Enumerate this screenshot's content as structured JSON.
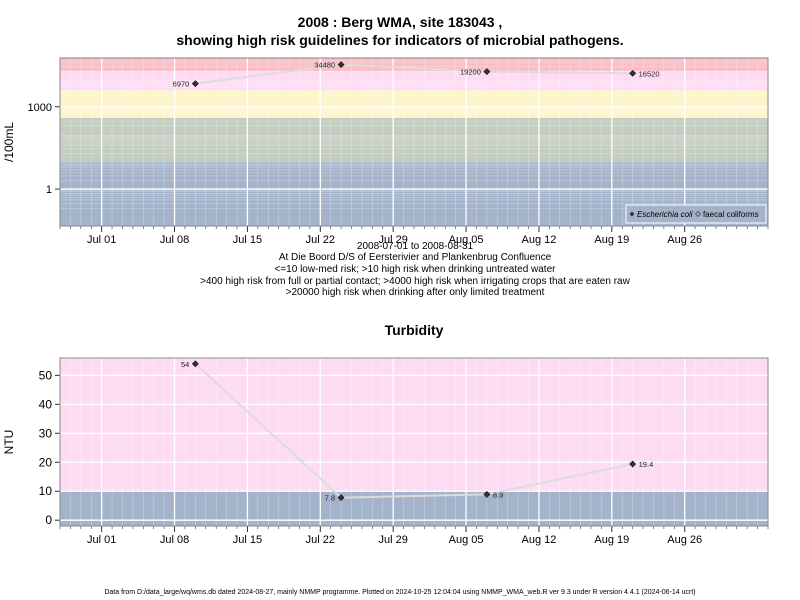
{
  "figure": {
    "title_line1": "2008 : Berg WMA, site 183043 ,",
    "title_line2": "showing high risk guidelines for indicators of microbial pathogens.",
    "footer": "Data from D:/data_large/wq/wms.db dated 2024-08-27, mainly NMMP programme. Plotted on 2024-10-25 12:04:04 using NMMP_WMA_web.R ver 9.3 under R version 4.4.1 (2024-06-14 ucrt)"
  },
  "caption": {
    "date_range": "2008-07-01 to 2008-08-31",
    "site": "At Die Boord D/S of Eersterivier and Plankenbrug Confluence",
    "note1": "<=10 low-med risk; >10 high risk when drinking untreated water",
    "note2": ">400 high risk from full or partial contact; >4000 high risk when irrigating crops that are eaten raw",
    "note3": ">20000 high risk when drinking after only limited treatment"
  },
  "colors": {
    "band_low": "#a3b4ca",
    "band_10": "#c3cec1",
    "band_400": "#fdf5c9",
    "band_4000": "#fddcf3",
    "band_20000": "#fcbdc7",
    "line": "#dcdcdc",
    "point": "#333333",
    "grid": "#ffffff"
  },
  "chart_data": [
    {
      "type": "line",
      "title": "",
      "ylabel": "/100mL",
      "yscale": "log",
      "xlim": [
        "2008-06-27",
        "2008-09-03"
      ],
      "ylim": [
        0.045,
        60000
      ],
      "x_ticks": [
        "2008-07-01",
        "2008-07-08",
        "2008-07-15",
        "2008-07-22",
        "2008-07-29",
        "2008-08-05",
        "2008-08-12",
        "2008-08-19",
        "2008-08-26"
      ],
      "x_tick_labels": [
        "Jul 01",
        "Jul 08",
        "Jul 15",
        "Jul 22",
        "Jul 29",
        "Aug 05",
        "Aug 12",
        "Aug 19",
        "Aug 26"
      ],
      "y_ticks": [
        1,
        1000
      ],
      "y_tick_labels": [
        "1",
        "1000"
      ],
      "bands": [
        {
          "from": 0.045,
          "to": 10,
          "color": "#a3b4ca"
        },
        {
          "from": 10,
          "to": 400,
          "color": "#c3cec1"
        },
        {
          "from": 400,
          "to": 4000,
          "color": "#fdf5c9"
        },
        {
          "from": 4000,
          "to": 20000,
          "color": "#fddcf3"
        },
        {
          "from": 20000,
          "to": 60000,
          "color": "#fcbdc7"
        }
      ],
      "legend": {
        "position": "bottom-right",
        "entries": [
          "Escherichia coli",
          "faecal coliforms"
        ]
      },
      "series": [
        {
          "name": "Escherichia coli",
          "x": [
            "2008-07-10",
            "2008-07-24",
            "2008-08-07",
            "2008-08-21"
          ],
          "y": [
            6970,
            34480,
            19200,
            16520
          ],
          "labels": [
            "6970",
            "34480",
            "19200",
            "16520"
          ]
        }
      ]
    },
    {
      "type": "line",
      "title": "Turbidity",
      "ylabel": "NTU",
      "yscale": "linear",
      "xlim": [
        "2008-06-27",
        "2008-09-03"
      ],
      "ylim": [
        -2,
        56
      ],
      "x_ticks": [
        "2008-07-01",
        "2008-07-08",
        "2008-07-15",
        "2008-07-22",
        "2008-07-29",
        "2008-08-05",
        "2008-08-12",
        "2008-08-19",
        "2008-08-26"
      ],
      "x_tick_labels": [
        "Jul 01",
        "Jul 08",
        "Jul 15",
        "Jul 22",
        "Jul 29",
        "Aug 05",
        "Aug 12",
        "Aug 19",
        "Aug 26"
      ],
      "y_ticks": [
        0,
        10,
        20,
        30,
        40,
        50
      ],
      "y_tick_labels": [
        "0",
        "10",
        "20",
        "30",
        "40",
        "50"
      ],
      "bands": [
        {
          "from": -2,
          "to": 10,
          "color": "#a3b4ca"
        },
        {
          "from": 10,
          "to": 56,
          "color": "#fddcf3"
        }
      ],
      "series": [
        {
          "x": [
            "2008-07-10",
            "2008-07-24",
            "2008-08-07",
            "2008-08-21"
          ],
          "y": [
            54,
            7.8,
            8.9,
            19.4
          ],
          "labels": [
            "54",
            "7.8",
            "8.9",
            "19.4"
          ]
        }
      ]
    }
  ]
}
